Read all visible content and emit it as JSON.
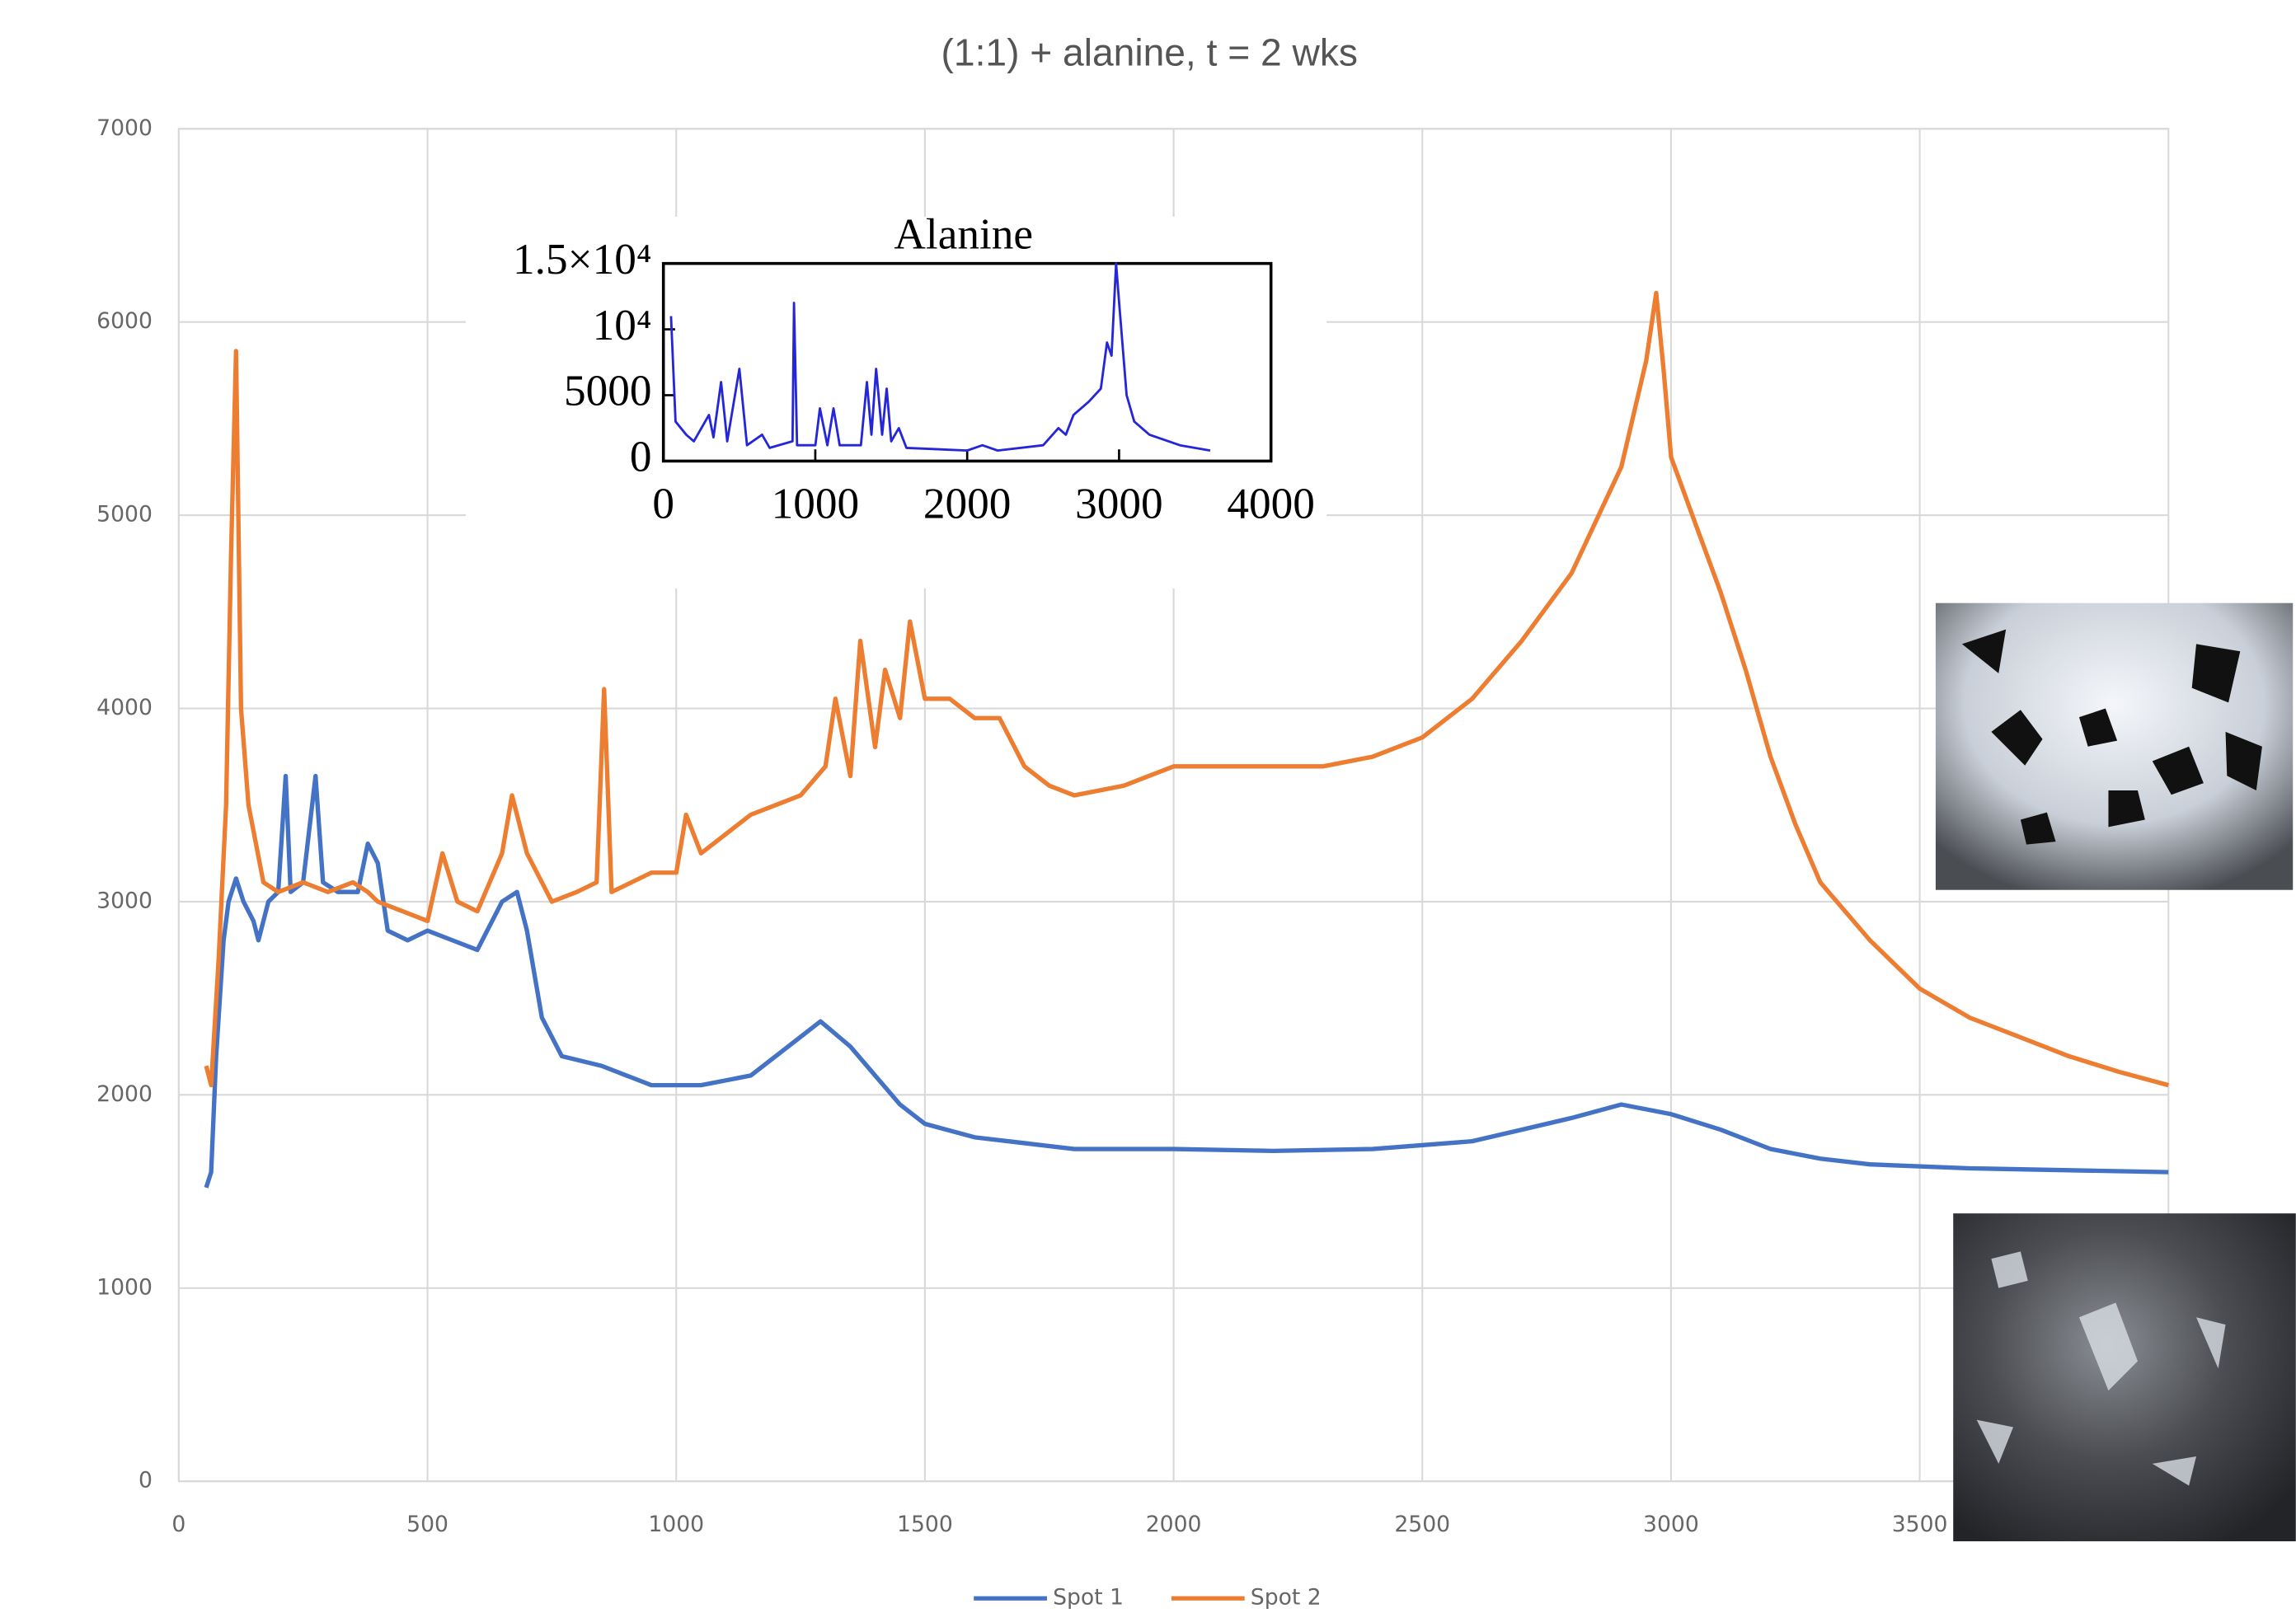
{
  "chart_data": [
    {
      "type": "line",
      "title": "(1:1) + alanine, t = 2 wks",
      "xlim": [
        0,
        4000
      ],
      "xticks": [
        0,
        500,
        1000,
        1500,
        2000,
        2500,
        3000,
        3500
      ],
      "ylim": [
        0,
        7000
      ],
      "yticks": [
        0,
        1000,
        2000,
        3000,
        4000,
        5000,
        6000,
        7000
      ],
      "grid": true,
      "legend": "bottom",
      "series": [
        {
          "name": "Spot 1",
          "color": "#4472c4",
          "x": [
            55,
            65,
            75,
            90,
            100,
            115,
            130,
            150,
            160,
            180,
            200,
            215,
            225,
            250,
            275,
            290,
            320,
            360,
            380,
            400,
            420,
            460,
            500,
            550,
            600,
            650,
            680,
            700,
            730,
            770,
            850,
            950,
            1050,
            1150,
            1250,
            1290,
            1350,
            1400,
            1450,
            1500,
            1600,
            1700,
            1800,
            2000,
            2200,
            2400,
            2600,
            2700,
            2800,
            2900,
            3000,
            3100,
            3200,
            3300,
            3400,
            3600,
            3800,
            4000
          ],
          "values": [
            1520,
            1600,
            2200,
            2800,
            3000,
            3120,
            3000,
            2900,
            2800,
            3000,
            3050,
            3650,
            3050,
            3100,
            3650,
            3100,
            3050,
            3050,
            3300,
            3200,
            2850,
            2800,
            2850,
            2800,
            2750,
            3000,
            3050,
            2850,
            2400,
            2200,
            2150,
            2050,
            2050,
            2100,
            2300,
            2380,
            2250,
            2100,
            1950,
            1850,
            1780,
            1750,
            1720,
            1720,
            1710,
            1720,
            1760,
            1820,
            1880,
            1950,
            1900,
            1820,
            1720,
            1670,
            1640,
            1620,
            1610,
            1600
          ]
        },
        {
          "name": "Spot 2",
          "color": "#ed7d31",
          "x": [
            55,
            65,
            80,
            95,
            105,
            115,
            125,
            140,
            170,
            200,
            250,
            300,
            350,
            380,
            400,
            450,
            500,
            530,
            560,
            600,
            650,
            670,
            700,
            750,
            800,
            840,
            855,
            870,
            950,
            1000,
            1020,
            1050,
            1100,
            1150,
            1200,
            1250,
            1300,
            1320,
            1350,
            1370,
            1400,
            1420,
            1450,
            1470,
            1500,
            1550,
            1600,
            1650,
            1700,
            1750,
            1800,
            1900,
            2000,
            2100,
            2200,
            2300,
            2400,
            2500,
            2600,
            2700,
            2800,
            2900,
            2950,
            2970,
            2985,
            3000,
            3050,
            3100,
            3150,
            3200,
            3250,
            3300,
            3400,
            3500,
            3600,
            3700,
            3800,
            3900,
            4000
          ],
          "values": [
            2150,
            2050,
            2700,
            3500,
            4800,
            5850,
            4000,
            3500,
            3100,
            3050,
            3100,
            3050,
            3100,
            3050,
            3000,
            2950,
            2900,
            3250,
            3000,
            2950,
            3250,
            3550,
            3250,
            3000,
            3050,
            3100,
            4100,
            3050,
            3150,
            3150,
            3450,
            3250,
            3350,
            3450,
            3500,
            3550,
            3700,
            4050,
            3650,
            4350,
            3800,
            4200,
            3950,
            4450,
            4050,
            4050,
            3950,
            3950,
            3700,
            3600,
            3550,
            3600,
            3700,
            3700,
            3700,
            3700,
            3750,
            3850,
            4050,
            4350,
            4700,
            5250,
            5800,
            6150,
            5750,
            5300,
            4950,
            4600,
            4200,
            3750,
            3400,
            3100,
            2800,
            2550,
            2400,
            2300,
            2200,
            2120,
            2050
          ]
        }
      ]
    },
    {
      "type": "line",
      "title": "Alanine",
      "xlim": [
        0,
        4000
      ],
      "xticks": [
        0,
        1000,
        2000,
        3000,
        4000
      ],
      "ylim": [
        0,
        15000
      ],
      "yticks": [
        0,
        5000,
        {
          "value": 10000,
          "label": "10⁴"
        },
        {
          "value": 15000,
          "label": "1.5×10⁴"
        }
      ],
      "grid": false,
      "series": [
        {
          "color": "#2626d9",
          "x": [
            50,
            80,
            150,
            200,
            300,
            330,
            380,
            420,
            500,
            550,
            650,
            700,
            850,
            860,
            880,
            1000,
            1030,
            1080,
            1120,
            1160,
            1300,
            1340,
            1370,
            1400,
            1440,
            1470,
            1500,
            1550,
            1600,
            2000,
            2100,
            2200,
            2500,
            2600,
            2650,
            2700,
            2800,
            2880,
            2920,
            2950,
            2980,
            3000,
            3050,
            3100,
            3200,
            3400,
            3600
          ],
          "values": [
            11000,
            3000,
            2000,
            1500,
            3500,
            1800,
            6000,
            1500,
            7000,
            1200,
            2000,
            1000,
            1500,
            12000,
            1200,
            1200,
            4000,
            1200,
            4000,
            1200,
            1200,
            6000,
            2000,
            7000,
            2000,
            5500,
            1500,
            2500,
            1000,
            800,
            1200,
            800,
            1200,
            2500,
            2000,
            3500,
            4500,
            5500,
            9000,
            8000,
            15000,
            12000,
            5000,
            3000,
            2000,
            1200,
            800
          ]
        }
      ]
    }
  ]
}
